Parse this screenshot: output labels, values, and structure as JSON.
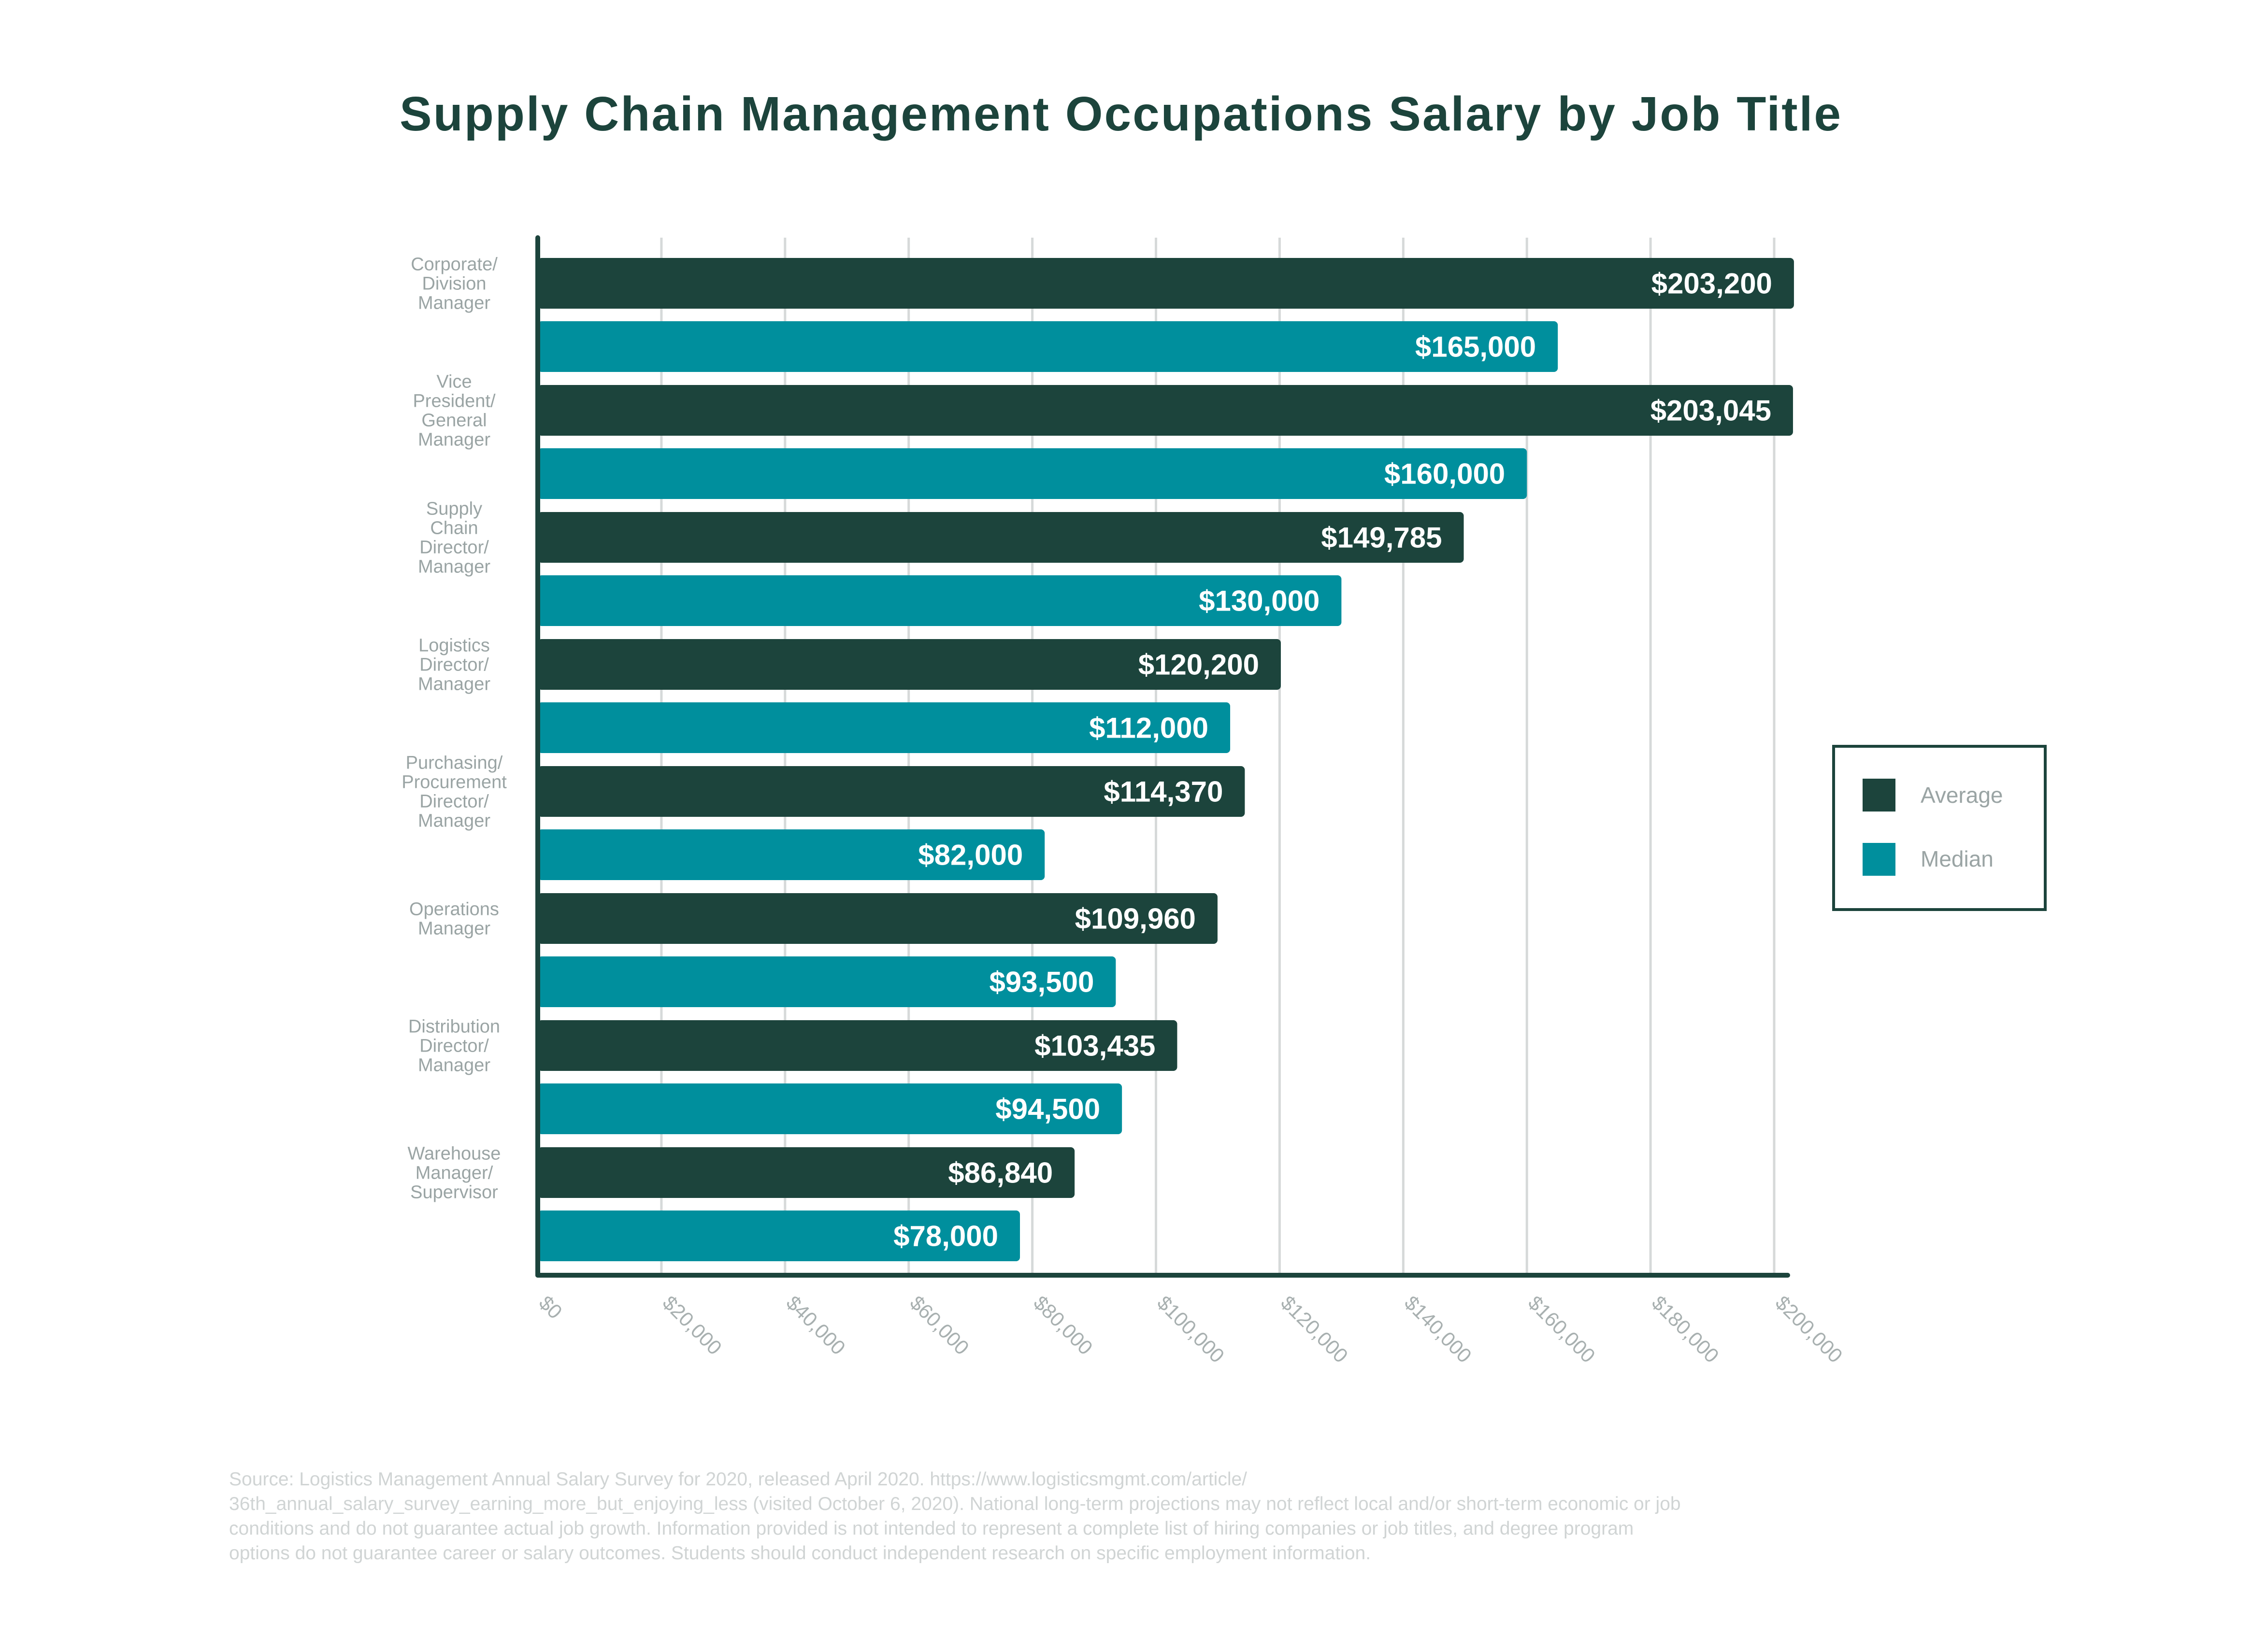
{
  "chart_data": {
    "type": "bar",
    "orientation": "horizontal",
    "title": "Supply Chain Management Occupations Salary by Job Title",
    "categories": [
      [
        "Corporate/",
        "Division",
        "Manager"
      ],
      [
        "Vice",
        "President/",
        "General",
        "Manager"
      ],
      [
        "Supply",
        "Chain",
        "Director/",
        "Manager"
      ],
      [
        "Logistics",
        "Director/",
        "Manager"
      ],
      [
        "Purchasing/",
        "Procurement",
        "Director/",
        "Manager"
      ],
      [
        "Operations",
        "Manager"
      ],
      [
        "Distribution",
        "Director/",
        "Manager"
      ],
      [
        "Warehouse",
        "Manager/",
        "Supervisor"
      ]
    ],
    "series": [
      {
        "name": "Average",
        "color": "#1c443c",
        "values": [
          203200,
          203045,
          149785,
          120200,
          114370,
          109960,
          103435,
          86840
        ],
        "labels": [
          "$203,200",
          "$203,045",
          "$149,785",
          "$120,200",
          "$114,370",
          "$109,960",
          "$103,435",
          "$86,840"
        ]
      },
      {
        "name": "Median",
        "color": "#008f9d",
        "values": [
          165000,
          160000,
          130000,
          112000,
          82000,
          93500,
          94500,
          78000
        ],
        "labels": [
          "$165,000",
          "$160,000",
          "$130,000",
          "$112,000",
          "$82,000",
          "$93,500",
          "$94,500",
          "$78,000"
        ]
      }
    ],
    "xlim": [
      0,
      200000
    ],
    "xticks": [
      0,
      20000,
      40000,
      60000,
      80000,
      100000,
      120000,
      140000,
      160000,
      180000,
      200000
    ],
    "xtick_labels": [
      "$0",
      "$20,000",
      "$40,000",
      "$60,000",
      "$80,000",
      "$100,000",
      "$120,000",
      "$140,000",
      "$160,000",
      "$180,000",
      "$200,000"
    ],
    "grid": "vertical",
    "legend": "right"
  },
  "footnote": [
    "Source: Logistics Management Annual Salary Survey for 2020, released April 2020. https://www.logisticsmgmt.com/article/",
    "36th_annual_salary_survey_earning_more_but_enjoying_less (visited October 6, 2020). National long-term projections may not reflect local and/or short-term economic or job",
    "conditions and do not guarantee actual job growth. Information provided is not intended to represent a complete list of hiring companies or job titles, and degree program",
    "options do not guarantee career or salary outcomes. Students should conduct independent research on specific employment information."
  ]
}
